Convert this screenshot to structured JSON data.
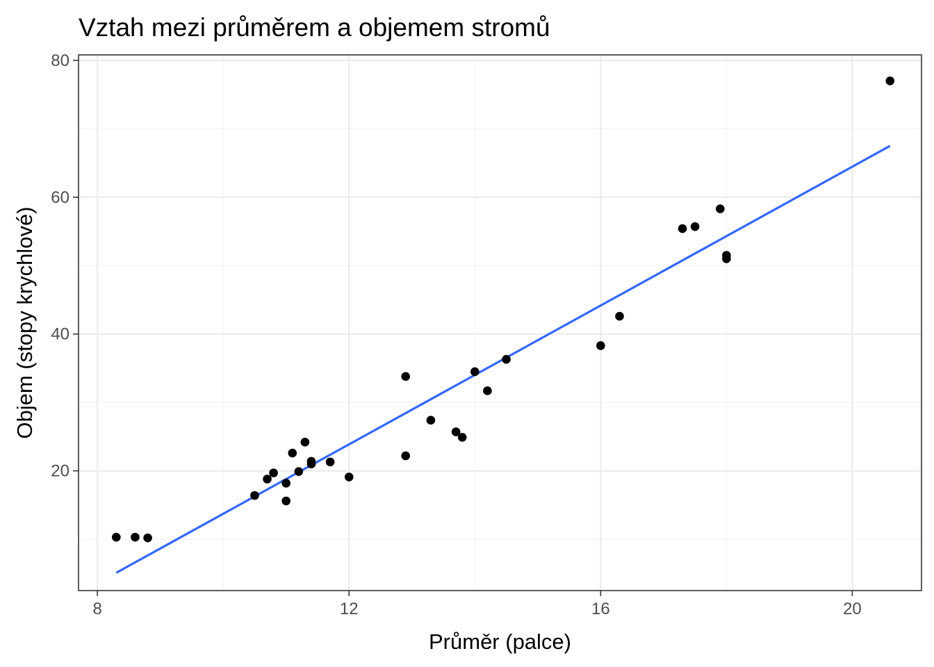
{
  "chart_data": {
    "type": "scatter",
    "title": "Vztah mezi průměrem a objemem stromů",
    "xlabel": "Průměr (palce)",
    "ylabel": "Objem (stopy krychlové)",
    "xlim": [
      7.7,
      21.1
    ],
    "ylim": [
      2.5,
      80.8
    ],
    "x_ticks": [
      8,
      12,
      16,
      20
    ],
    "x_tick_labels": [
      "8",
      "12",
      "16",
      "20"
    ],
    "y_ticks": [
      20,
      40,
      60,
      80
    ],
    "y_tick_labels": [
      "20",
      "40",
      "60",
      "80"
    ],
    "grid": true,
    "x": [
      8.3,
      8.6,
      8.8,
      10.5,
      10.7,
      10.8,
      11.0,
      11.0,
      11.1,
      11.2,
      11.3,
      11.4,
      11.4,
      11.7,
      12.0,
      12.9,
      12.9,
      13.3,
      13.7,
      13.8,
      14.0,
      14.2,
      14.5,
      16.0,
      16.3,
      17.3,
      17.5,
      17.9,
      18.0,
      18.0,
      20.6
    ],
    "y": [
      10.3,
      10.3,
      10.2,
      16.4,
      18.8,
      19.7,
      15.6,
      18.2,
      22.6,
      19.9,
      24.2,
      21.0,
      21.4,
      21.3,
      19.1,
      22.2,
      33.8,
      27.4,
      25.7,
      24.9,
      34.5,
      31.7,
      36.3,
      38.3,
      42.6,
      55.4,
      55.7,
      58.3,
      51.5,
      51.0,
      77.0
    ],
    "fit_line": {
      "x": [
        8.3,
        20.6
      ],
      "y": [
        5.1,
        67.5
      ]
    },
    "point_color": "#000000",
    "line_color": "#3366ff"
  }
}
